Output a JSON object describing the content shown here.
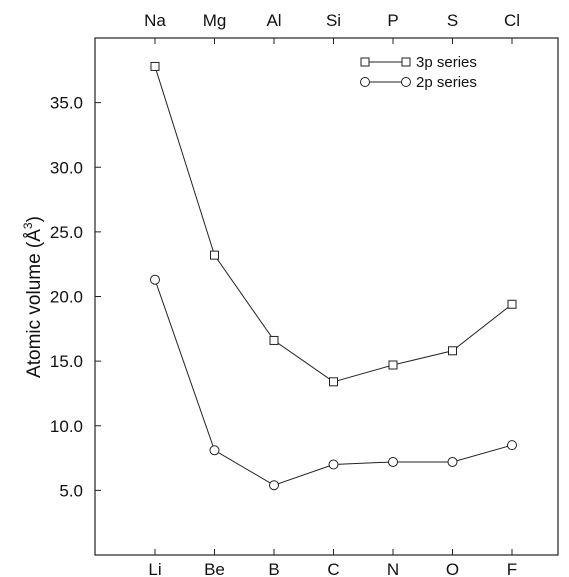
{
  "chart_data": {
    "type": "line",
    "categories_bottom": [
      "Li",
      "Be",
      "B",
      "C",
      "N",
      "O",
      "F"
    ],
    "categories_top": [
      "Na",
      "Mg",
      "Al",
      "Si",
      "P",
      "S",
      "Cl"
    ],
    "ylabel": "Atomic volume  (Å",
    "ylabel_superscript": "3",
    "ylabel_close": ")",
    "ylim": [
      0,
      40
    ],
    "yticks": [
      5.0,
      10.0,
      15.0,
      20.0,
      25.0,
      30.0,
      35.0
    ],
    "ytick_labels": [
      "5.0",
      "10.0",
      "15.0",
      "20.0",
      "25.0",
      "30.0",
      "35.0"
    ],
    "grid": false,
    "legend_position": "top-right",
    "series": [
      {
        "name": "3p series",
        "marker": "square",
        "values": [
          37.8,
          23.2,
          16.6,
          13.4,
          14.7,
          15.8,
          19.4
        ]
      },
      {
        "name": "2p series",
        "marker": "circle",
        "values": [
          21.3,
          8.1,
          5.4,
          7.0,
          7.2,
          7.2,
          8.5
        ]
      }
    ]
  }
}
